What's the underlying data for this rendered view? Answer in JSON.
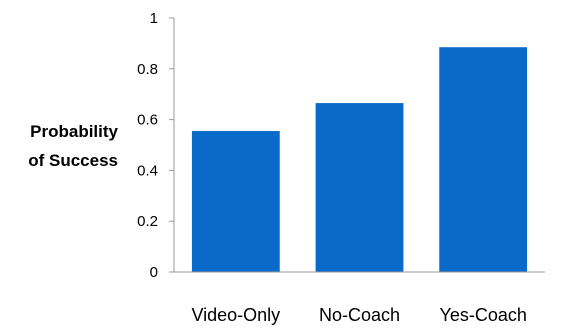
{
  "chart_data": {
    "type": "bar",
    "categories": [
      "Video-Only",
      "No-Coach",
      "Yes-Coach"
    ],
    "values": [
      0.555,
      0.665,
      0.885
    ],
    "title": "",
    "xlabel": "",
    "ylabel_lines": [
      "Probability",
      "of Success"
    ],
    "ylim": [
      0,
      1
    ],
    "yticks": [
      "0",
      "0.2",
      "0.4",
      "0.6",
      "0.8",
      "1"
    ],
    "grid": false,
    "legend": "none",
    "bar_color": "#0a6ac9",
    "axis_color": "#9a9a9a"
  }
}
